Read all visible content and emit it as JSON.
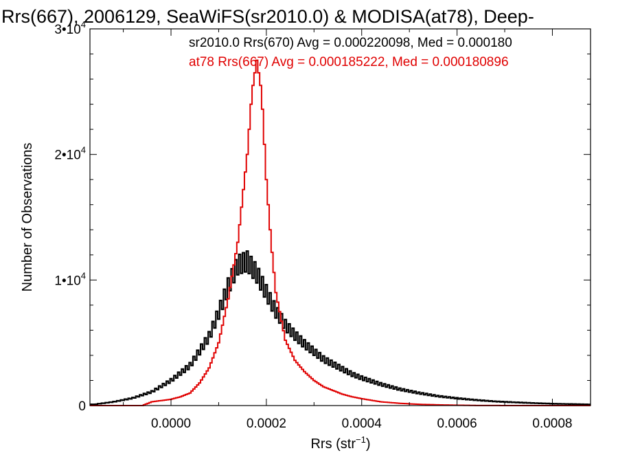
{
  "chart_data": {
    "type": "line",
    "title": "Rrs(667), 2006129, SeaWiFS(sr2010.0) & MODISA(at78), Deep-",
    "xlabel": "Rrs (str",
    "xlabel_sup": "−1",
    "xlabel_end": ")",
    "ylabel": "Number of Observations",
    "xlim": [
      -0.00017,
      0.00088
    ],
    "ylim": [
      0,
      30000
    ],
    "xticks": [
      0.0,
      0.0002,
      0.0004,
      0.0006,
      0.0008
    ],
    "xtick_labels": [
      "0.0000",
      "0.0002",
      "0.0004",
      "0.0006",
      "0.0008"
    ],
    "yticks": [
      0,
      10000,
      20000,
      30000
    ],
    "ytick_labels": [
      {
        "base": "0",
        "sup": ""
      },
      {
        "base": "1•10",
        "sup": "4"
      },
      {
        "base": "2•10",
        "sup": "4"
      },
      {
        "base": "3•10",
        "sup": "4"
      }
    ],
    "annotations": [
      "sr2010.0 Rrs(670) Avg = 0.000220098, Med = 0.000180",
      "at78 Rrs(667) Avg = 0.000185222, Med = 0.000180896"
    ],
    "grid": false,
    "series": [
      {
        "color": "#000000",
        "style": "step-noisy",
        "x": [
          -0.00016,
          -0.00012,
          -8e-05,
          -4e-05,
          0.0,
          4e-05,
          8e-05,
          0.0001,
          0.00012,
          0.00014,
          0.00016,
          0.00018,
          0.0002,
          0.00022,
          0.00024,
          0.00026,
          0.00028,
          0.0003,
          0.00032,
          0.00034,
          0.00036,
          0.00038,
          0.0004,
          0.00044,
          0.00048,
          0.00052,
          0.00056,
          0.0006,
          0.00064,
          0.00068,
          0.00072,
          0.00076,
          0.0008,
          0.00084,
          0.00088
        ],
        "y": [
          100,
          300,
          600,
          1100,
          2000,
          3200,
          5500,
          7400,
          9500,
          11200,
          11500,
          10500,
          9000,
          7500,
          6400,
          5600,
          4900,
          4300,
          3700,
          3300,
          2900,
          2500,
          2200,
          1700,
          1300,
          1000,
          750,
          580,
          440,
          330,
          260,
          200,
          150,
          120,
          90
        ]
      },
      {
        "color": "#e00000",
        "style": "step",
        "x": [
          -0.00016,
          -0.0001,
          -6e-05,
          -4e-05,
          -2e-05,
          0.0,
          2e-05,
          4e-05,
          6e-05,
          8e-05,
          0.0001,
          0.00012,
          0.00014,
          0.00016,
          0.00017,
          0.00018,
          0.00019,
          0.0002,
          0.00021,
          0.00022,
          0.00024,
          0.00026,
          0.00028,
          0.0003,
          0.00032,
          0.00034,
          0.00036,
          0.00038,
          0.0004,
          0.00044,
          0.00048,
          0.00052,
          0.00056,
          0.0006,
          0.00064,
          0.00068,
          0.00072,
          0.00088
        ],
        "y": [
          0,
          0,
          0,
          300,
          400,
          500,
          700,
          1000,
          1800,
          3000,
          5000,
          8500,
          13000,
          20000,
          25000,
          27500,
          25000,
          18000,
          13000,
          9000,
          5200,
          3600,
          2700,
          2000,
          1500,
          1200,
          900,
          700,
          550,
          300,
          180,
          100,
          60,
          30,
          10,
          5,
          0,
          0
        ]
      }
    ]
  }
}
